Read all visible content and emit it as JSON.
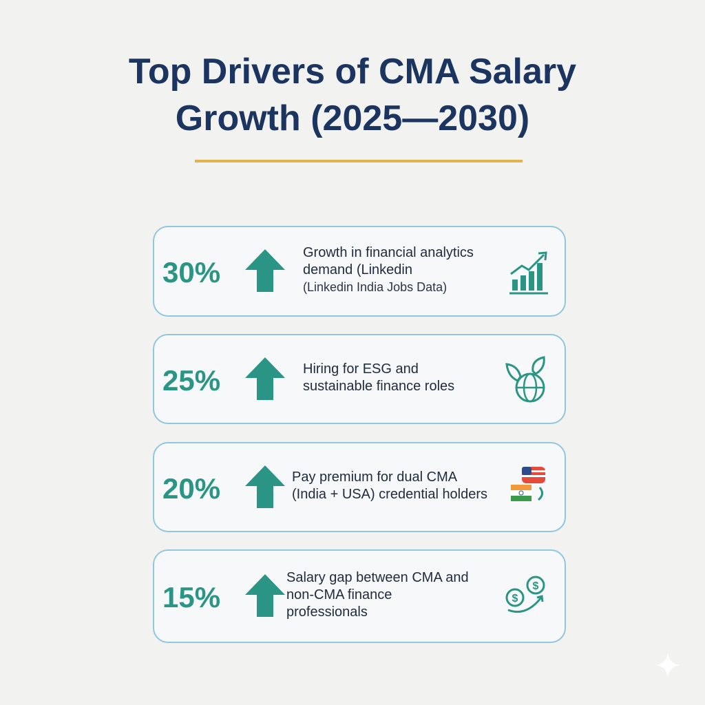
{
  "header": {
    "title_lines": [
      "Top Drivers of CMA Salary",
      "Growth (2025—2030)"
    ]
  },
  "cards": [
    {
      "value": "30%",
      "lines": [
        "Growth in financial analytics",
        "demand (Linkedin"
      ],
      "source": "(Linkedin India Jobs Data)"
    },
    {
      "value": "25%",
      "lines": [
        "Hiring for ESG and",
        "sustainable finance roles"
      ]
    },
    {
      "value": "20%",
      "lines": [
        "Pay premium for dual CMA",
        "(India + USA) credential holders"
      ]
    },
    {
      "value": "15%",
      "lines": [
        "Salary gap between CMA and",
        "non-CMA finance",
        "professionals"
      ]
    }
  ]
}
